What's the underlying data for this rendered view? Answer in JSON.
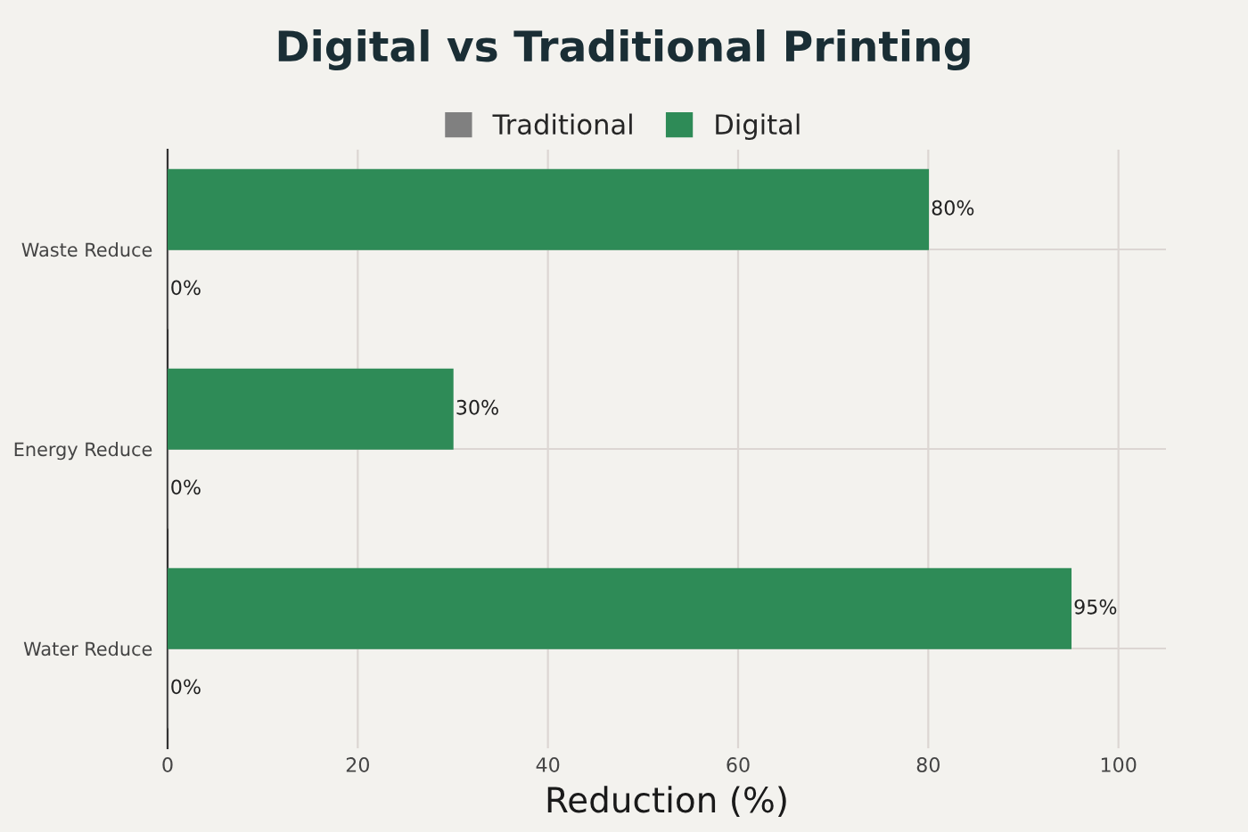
{
  "chart_data": {
    "type": "bar",
    "orientation": "horizontal",
    "title": "Digital vs Traditional Printing",
    "xlabel": "Reduction (%)",
    "categories": [
      "Waste Reduce",
      "Energy Reduce",
      "Water Reduce"
    ],
    "series": [
      {
        "name": "Traditional",
        "color": "#808080",
        "values": [
          0,
          0,
          0
        ],
        "value_labels": [
          "0%",
          "0%",
          "0%"
        ]
      },
      {
        "name": "Digital",
        "color": "#2e8b57",
        "values": [
          80,
          30,
          95
        ],
        "value_labels": [
          "80%",
          "30%",
          "95%"
        ]
      }
    ],
    "xlim": [
      0,
      105
    ],
    "xticks": [
      0,
      20,
      40,
      60,
      80,
      100
    ],
    "grid": true,
    "legend": "top"
  }
}
